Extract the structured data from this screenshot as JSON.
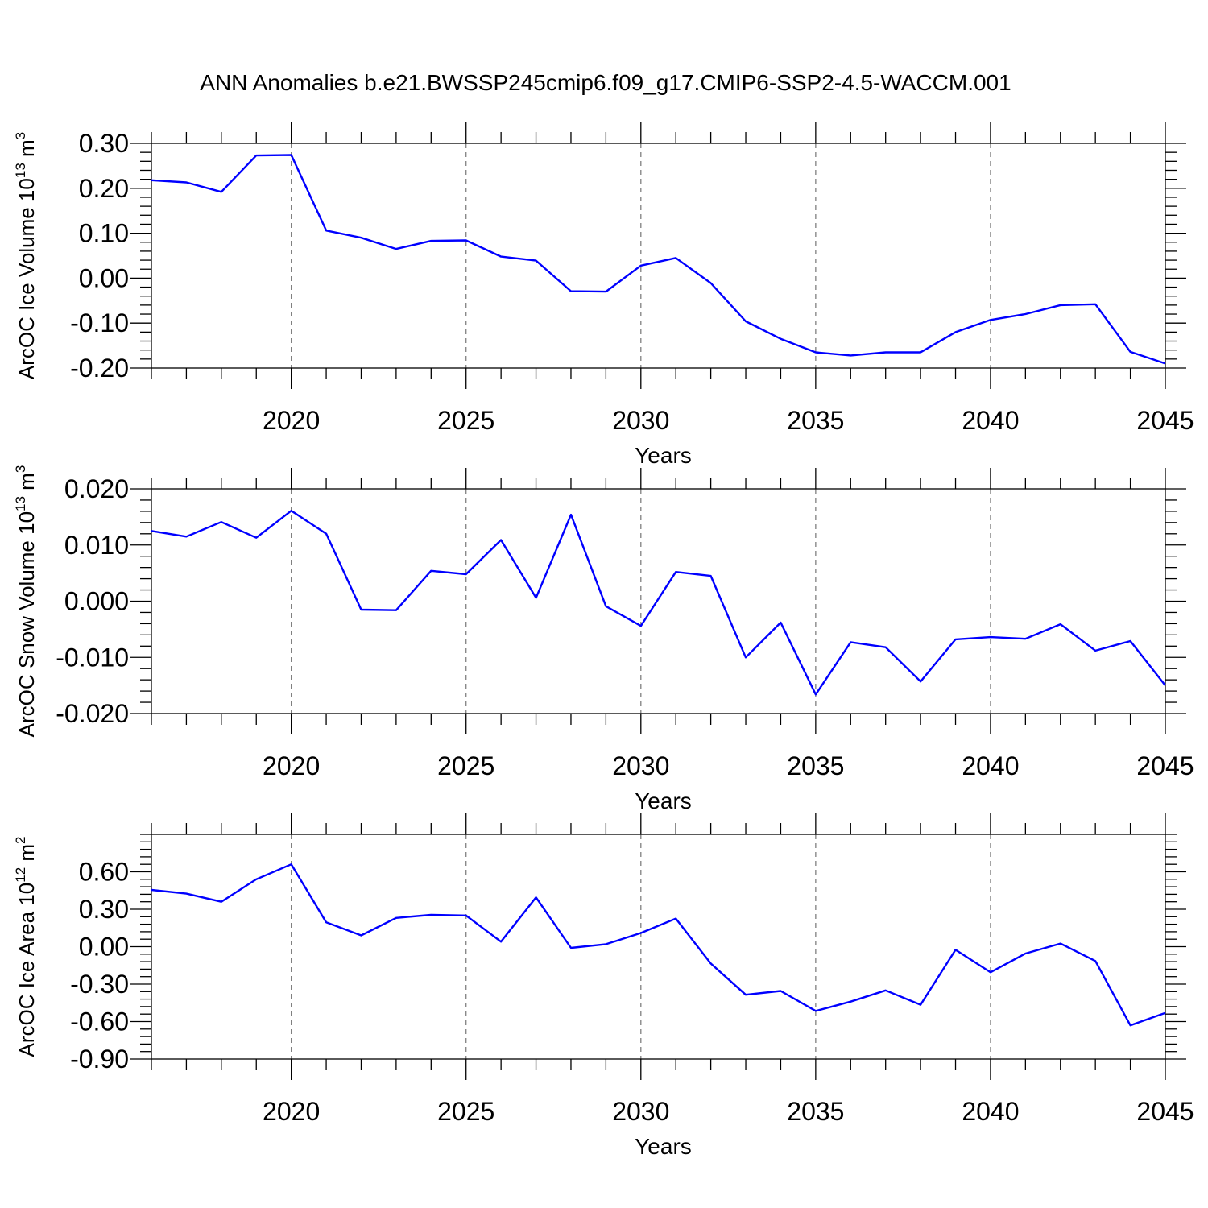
{
  "title": "ANN Anomalies b.e21.BWSSP245cmip6.f09_g17.CMIP6-SSP2-4.5-WACCM.001",
  "colors": {
    "line": "#0000ff",
    "axes": "#000000",
    "grid": "#808080",
    "background": "#ffffff"
  },
  "chart_data": [
    {
      "type": "line",
      "ylabel": {
        "text": "ArcOC Ice Volume 10",
        "exp": "13",
        "unit": " m",
        "unit_exp": "3"
      },
      "xlabel": "Years",
      "xlim": [
        2016,
        2045
      ],
      "ylim": [
        -0.2,
        0.3
      ],
      "x_ticks": [
        2020,
        2025,
        2030,
        2035,
        2040,
        2045
      ],
      "x_tick_labels": [
        "2020",
        "2025",
        "2030",
        "2035",
        "2040",
        "2045"
      ],
      "y_ticks": [
        0.3,
        0.2,
        0.1,
        0.0,
        -0.1,
        -0.2
      ],
      "y_tick_labels": [
        "0.30",
        "0.20",
        "0.10",
        "0.00",
        "-0.10",
        "-0.20"
      ],
      "grid": "vertical dashed at major x ticks",
      "series": [
        {
          "name": "ArcOC Ice Volume",
          "x": [
            2016,
            2017,
            2018,
            2019,
            2020,
            2021,
            2022,
            2023,
            2024,
            2025,
            2026,
            2027,
            2028,
            2029,
            2030,
            2031,
            2032,
            2033,
            2034,
            2035,
            2036,
            2037,
            2038,
            2039,
            2040,
            2041,
            2042,
            2043,
            2044,
            2045
          ],
          "values": [
            0.218,
            0.213,
            0.192,
            0.273,
            0.274,
            0.106,
            0.09,
            0.065,
            0.083,
            0.084,
            0.048,
            0.039,
            -0.029,
            -0.03,
            0.028,
            0.045,
            -0.011,
            -0.096,
            -0.135,
            -0.165,
            -0.172,
            -0.165,
            -0.165,
            -0.12,
            -0.093,
            -0.08,
            -0.06,
            -0.058,
            -0.164,
            -0.19
          ]
        }
      ]
    },
    {
      "type": "line",
      "ylabel": {
        "text": "ArcOC Snow Volume 10",
        "exp": "13",
        "unit": " m",
        "unit_exp": "3"
      },
      "xlabel": "Years",
      "xlim": [
        2016,
        2045
      ],
      "ylim": [
        -0.02,
        0.02
      ],
      "x_ticks": [
        2020,
        2025,
        2030,
        2035,
        2040,
        2045
      ],
      "x_tick_labels": [
        "2020",
        "2025",
        "2030",
        "2035",
        "2040",
        "2045"
      ],
      "y_ticks": [
        0.02,
        0.01,
        0.0,
        -0.01,
        -0.02
      ],
      "y_tick_labels": [
        "0.020",
        "0.010",
        "0.000",
        "-0.010",
        "-0.020"
      ],
      "grid": "vertical dashed at major x ticks",
      "series": [
        {
          "name": "ArcOC Snow Volume",
          "x": [
            2016,
            2017,
            2018,
            2019,
            2020,
            2021,
            2022,
            2023,
            2024,
            2025,
            2026,
            2027,
            2028,
            2029,
            2030,
            2031,
            2032,
            2033,
            2034,
            2035,
            2036,
            2037,
            2038,
            2039,
            2040,
            2041,
            2042,
            2043,
            2044,
            2045
          ],
          "values": [
            0.0125,
            0.0115,
            0.0141,
            0.0113,
            0.0161,
            0.012,
            -0.0015,
            -0.0016,
            0.0054,
            0.0048,
            0.0109,
            0.0006,
            0.0154,
            -0.0009,
            -0.0044,
            0.0052,
            0.0045,
            -0.01,
            -0.0038,
            -0.0166,
            -0.0073,
            -0.0082,
            -0.0143,
            -0.0068,
            -0.0064,
            -0.0067,
            -0.0041,
            -0.0088,
            -0.0071,
            -0.015
          ]
        }
      ]
    },
    {
      "type": "line",
      "ylabel": {
        "text": "ArcOC Ice Area 10",
        "exp": "12",
        "unit": " m",
        "unit_exp": "2"
      },
      "xlabel": "Years",
      "xlim": [
        2016,
        2045
      ],
      "ylim": [
        -0.9,
        0.9
      ],
      "x_ticks": [
        2020,
        2025,
        2030,
        2035,
        2040,
        2045
      ],
      "x_tick_labels": [
        "2020",
        "2025",
        "2030",
        "2035",
        "2040",
        "2045"
      ],
      "y_ticks": [
        0.6,
        0.3,
        0.0,
        -0.3,
        -0.6,
        -0.9
      ],
      "y_tick_labels": [
        "0.60",
        "0.30",
        "0.00",
        "-0.30",
        "-0.60",
        "-0.90"
      ],
      "grid": "vertical dashed at major x ticks",
      "series": [
        {
          "name": "ArcOC Ice Area",
          "x": [
            2016,
            2017,
            2018,
            2019,
            2020,
            2021,
            2022,
            2023,
            2024,
            2025,
            2026,
            2027,
            2028,
            2029,
            2030,
            2031,
            2032,
            2033,
            2034,
            2035,
            2036,
            2037,
            2038,
            2039,
            2040,
            2041,
            2042,
            2043,
            2044,
            2045
          ],
          "values": [
            0.455,
            0.425,
            0.36,
            0.54,
            0.66,
            0.195,
            0.09,
            0.23,
            0.255,
            0.25,
            0.04,
            0.395,
            -0.01,
            0.02,
            0.11,
            0.225,
            -0.135,
            -0.385,
            -0.355,
            -0.515,
            -0.44,
            -0.35,
            -0.465,
            -0.025,
            -0.205,
            -0.055,
            0.025,
            -0.115,
            -0.63,
            -0.53
          ]
        }
      ]
    }
  ]
}
